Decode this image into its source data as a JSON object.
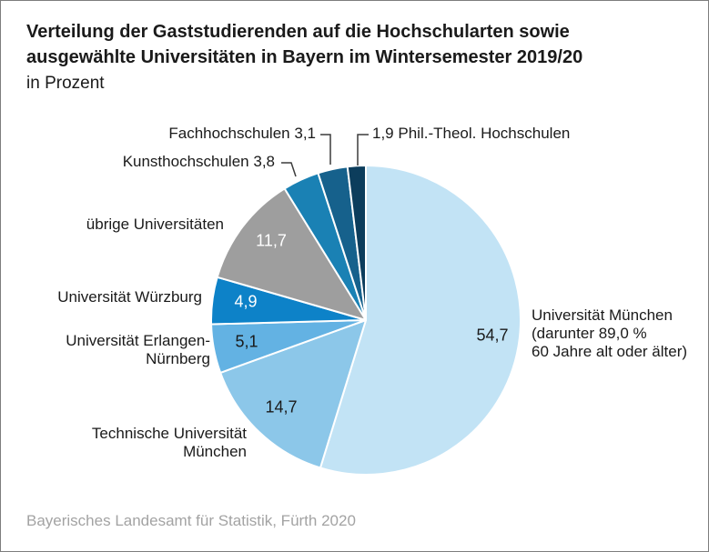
{
  "header": {
    "title_line1": "Verteilung der Gaststudierenden auf die Hochschularten sowie",
    "title_line2": "ausgewählte Universitäten in Bayern im Wintersemester 2019/20",
    "subtitle": "in Prozent"
  },
  "footer": {
    "source": "Bayerisches Landesamt für Statistik, Fürth 2020"
  },
  "chart_data": {
    "type": "pie",
    "title": "Verteilung der Gaststudierenden auf die Hochschularten sowie ausgewählte Universitäten in Bayern im Wintersemester 2019/20",
    "unit": "Prozent",
    "start_angle_deg": 0,
    "direction": "clockwise",
    "segments": [
      {
        "label": "Universität München",
        "note": "(darunter 89,0 %\n60 Jahre alt oder älter)",
        "value": 54.7,
        "display_value": "54,7",
        "color": "#c2e3f5",
        "value_text_color": "black"
      },
      {
        "label": "Technische Universität München",
        "value": 14.7,
        "display_value": "14,7",
        "color": "#8cc7e9",
        "value_text_color": "black"
      },
      {
        "label": "Universität Erlangen-Nürnberg",
        "value": 5.1,
        "display_value": "5,1",
        "color": "#63b2e3",
        "value_text_color": "black"
      },
      {
        "label": "Universität Würzburg",
        "value": 4.9,
        "display_value": "4,9",
        "color": "#0d82c8",
        "value_text_color": "white"
      },
      {
        "label": "übrige Universitäten",
        "value": 11.7,
        "display_value": "11,7",
        "color": "#9e9e9e",
        "value_text_color": "white"
      },
      {
        "label": "Kunsthochschulen",
        "value": 3.8,
        "display_value": "3,8",
        "color": "#1a81b4",
        "value_text_color": "outside"
      },
      {
        "label": "Fachhochschulen",
        "value": 3.1,
        "display_value": "3,1",
        "color": "#16618c",
        "value_text_color": "outside"
      },
      {
        "label": "Phil.-Theol. Hochschulen",
        "value": 1.9,
        "display_value": "1,9",
        "color": "#0c3d5c",
        "value_text_color": "outside"
      }
    ]
  }
}
